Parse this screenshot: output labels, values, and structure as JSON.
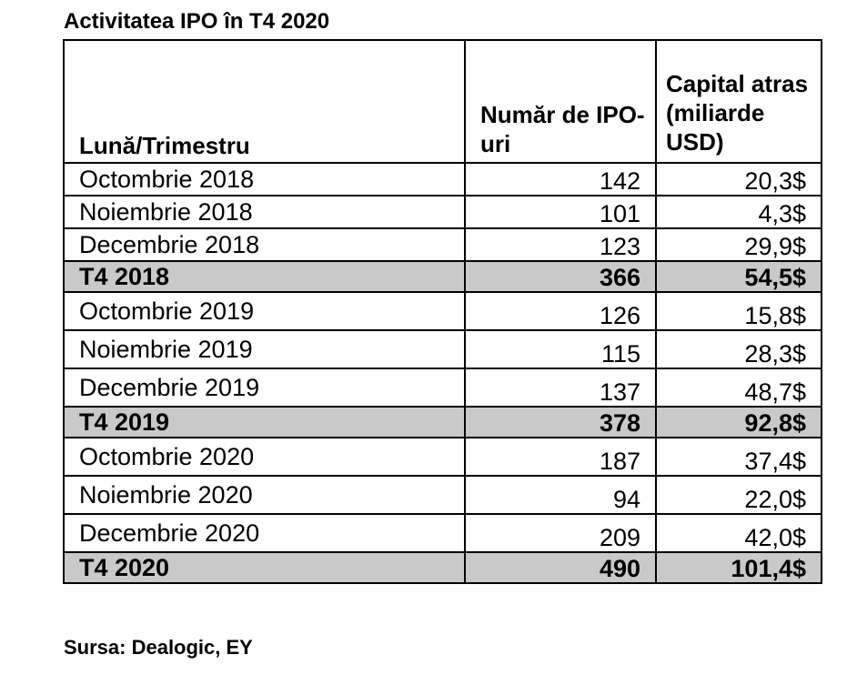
{
  "title": "Activitatea IPO în T4 2020",
  "headers": {
    "label": "Lună/Trimestru",
    "count": "Număr de IPO-uri",
    "capital": "Capital atras (miliarde USD)"
  },
  "rows": [
    {
      "label": "Octombrie 2018",
      "count": "142",
      "capital": "20,3$",
      "total": false
    },
    {
      "label": "Noiembrie 2018",
      "count": "101",
      "capital": "4,3$",
      "total": false
    },
    {
      "label": "Decembrie 2018",
      "count": "123",
      "capital": "29,9$",
      "total": false
    },
    {
      "label": "T4 2018",
      "count": "366",
      "capital": "54,5$",
      "total": true
    },
    {
      "label": "Octombrie 2019",
      "count": "126",
      "capital": "15,8$",
      "total": false
    },
    {
      "label": "Noiembrie 2019",
      "count": "115",
      "capital": "28,3$",
      "total": false
    },
    {
      "label": "Decembrie 2019",
      "count": "137",
      "capital": "48,7$",
      "total": false
    },
    {
      "label": "T4 2019",
      "count": "378",
      "capital": "92,8$",
      "total": true
    },
    {
      "label": "Octombrie 2020",
      "count": "187",
      "capital": "37,4$",
      "total": false
    },
    {
      "label": "Noiembrie 2020",
      "count": "94",
      "capital": "22,0$",
      "total": false
    },
    {
      "label": "Decembrie 2020",
      "count": "209",
      "capital": "42,0$",
      "total": false
    },
    {
      "label": "T4 2020",
      "count": "490",
      "capital": "101,4$",
      "total": true
    }
  ],
  "colors": {
    "total_row_background": "#c9c9c9",
    "border": "#000000",
    "text": "#000000"
  },
  "source": "Sursa: Dealogic, EY"
}
